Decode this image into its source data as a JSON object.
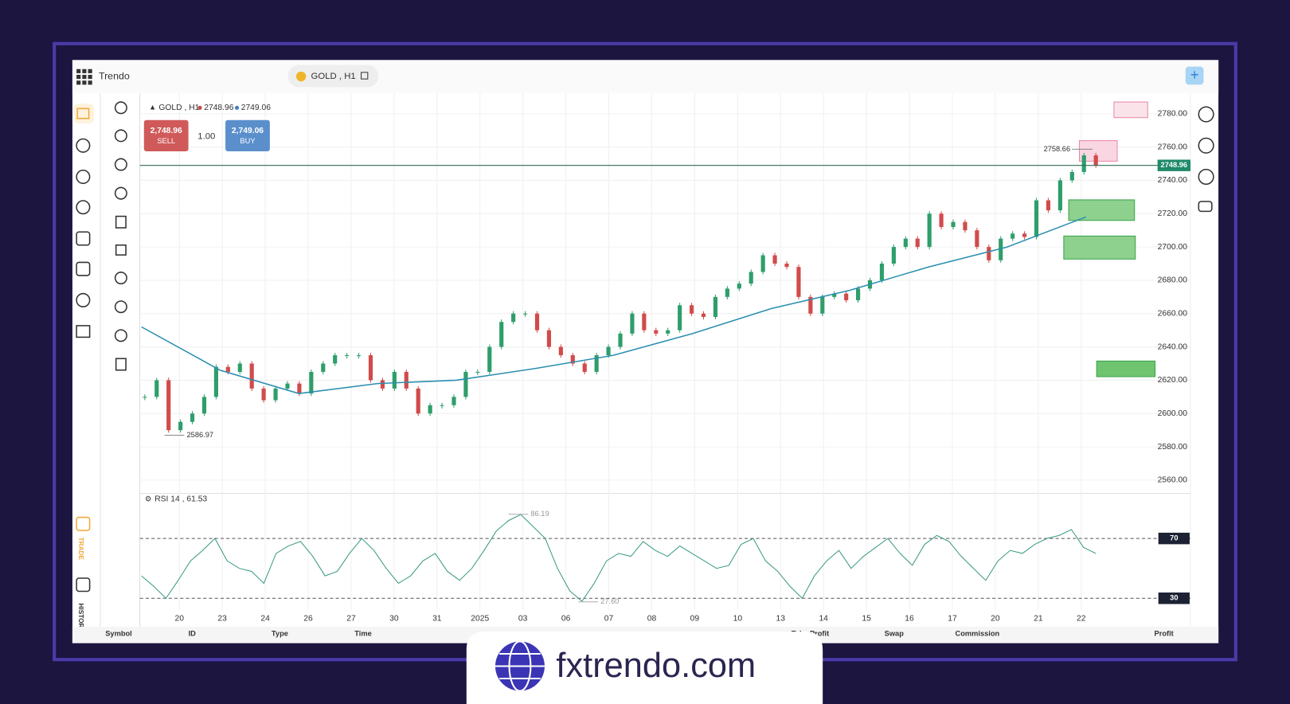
{
  "app": {
    "name": "Trendo",
    "symbol_tab": "GOLD , H1",
    "side_trade": "TRADE",
    "side_history": "HISTORY",
    "brand": "fxtrendo.com"
  },
  "chart": {
    "type": "candlestick",
    "legend": {
      "symbol": "GOLD , H1",
      "bid": "2748.96",
      "ask": "2749.06"
    },
    "trade": {
      "sell_price": "2,748.96",
      "sell_label": "SELL",
      "lot": "1.00",
      "buy_price": "2,749.06",
      "buy_label": "BUY"
    },
    "ylim": [
      2553,
      2790
    ],
    "yticks": [
      {
        "value": 2560,
        "label": "2560.00"
      },
      {
        "value": 2580,
        "label": "2580.00"
      },
      {
        "value": 2600,
        "label": "2600.00"
      },
      {
        "value": 2620,
        "label": "2620.00"
      },
      {
        "value": 2640,
        "label": "2640.00"
      },
      {
        "value": 2660,
        "label": "2660.00"
      },
      {
        "value": 2680,
        "label": "2680.00"
      },
      {
        "value": 2700,
        "label": "2700.00"
      },
      {
        "value": 2720,
        "label": "2720.00"
      },
      {
        "value": 2740,
        "label": "2740.00"
      },
      {
        "value": 2760,
        "label": "2760.00"
      },
      {
        "value": 2780,
        "label": "2780.00"
      }
    ],
    "x_labels": [
      "20",
      "23",
      "24",
      "26",
      "27",
      "30",
      "31",
      "2025",
      "03",
      "06",
      "07",
      "08",
      "09",
      "10",
      "13",
      "14",
      "15",
      "16",
      "17",
      "20",
      "21",
      "22"
    ],
    "closes": [
      2610,
      2620,
      2590,
      2595,
      2600,
      2610,
      2628,
      2625,
      2630,
      2615,
      2608,
      2615,
      2618,
      2612,
      2625,
      2630,
      2635,
      2635,
      2635,
      2620,
      2615,
      2625,
      2615,
      2600,
      2605,
      2605,
      2610,
      2625,
      2625,
      2640,
      2655,
      2660,
      2660,
      2650,
      2640,
      2635,
      2630,
      2625,
      2635,
      2640,
      2648,
      2660,
      2650,
      2648,
      2650,
      2665,
      2660,
      2658,
      2670,
      2675,
      2678,
      2685,
      2695,
      2690,
      2688,
      2670,
      2660,
      2670,
      2672,
      2668,
      2675,
      2680,
      2690,
      2700,
      2705,
      2700,
      2720,
      2712,
      2715,
      2710,
      2700,
      2692,
      2705,
      2708,
      2706,
      2728,
      2722,
      2740,
      2745,
      2755,
      2749
    ],
    "moving_average": [
      2652,
      2626,
      2612,
      2618,
      2620,
      2627,
      2635,
      2648,
      2663,
      2674,
      2688,
      2700,
      2718
    ],
    "current_price": {
      "value": 2748.96,
      "label": "2748.96"
    },
    "annotations": [
      {
        "value": 2758.66,
        "label": "2758.66"
      },
      {
        "value": 2586.97,
        "label": "2586.97"
      }
    ],
    "rsi": {
      "title": "RSI 14 , 61.53",
      "ylim": [
        22,
        99
      ],
      "levels": [
        70,
        30
      ],
      "values": [
        45,
        38,
        30,
        42,
        55,
        62,
        70,
        55,
        50,
        48,
        40,
        60,
        65,
        68,
        58,
        45,
        48,
        60,
        70,
        62,
        50,
        40,
        45,
        55,
        60,
        48,
        42,
        50,
        62,
        75,
        82,
        86,
        78,
        70,
        50,
        35,
        28,
        40,
        55,
        60,
        58,
        68,
        62,
        58,
        65,
        60,
        55,
        50,
        52,
        66,
        70,
        55,
        48,
        38,
        30,
        45,
        55,
        62,
        50,
        58,
        64,
        70,
        60,
        52,
        66,
        72,
        68,
        58,
        50,
        42,
        55,
        62,
        60,
        66,
        70,
        72,
        76,
        64,
        60
      ],
      "annotations": [
        {
          "value": 86.19,
          "label": "86.19"
        },
        {
          "value": 27.6,
          "label": "27.60"
        }
      ]
    }
  },
  "positions": {
    "columns": [
      "Symbol",
      "ID",
      "Type",
      "Time",
      "Take Profit",
      "Swap",
      "Commission",
      "Profit"
    ]
  }
}
